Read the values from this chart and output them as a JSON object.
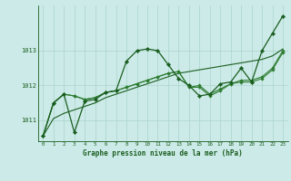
{
  "background_color": "#cceae7",
  "grid_color": "#aad4cc",
  "line_color_dark": "#1a5e20",
  "line_color_mid": "#2e7d32",
  "xlabel": "Graphe pression niveau de la mer (hPa)",
  "xlim": [
    -0.5,
    23.5
  ],
  "ylim": [
    1010.4,
    1014.3
  ],
  "yticks": [
    1011,
    1012,
    1013
  ],
  "xticks": [
    0,
    1,
    2,
    3,
    4,
    5,
    6,
    7,
    8,
    9,
    10,
    11,
    12,
    13,
    14,
    15,
    16,
    17,
    18,
    19,
    20,
    21,
    22,
    23
  ],
  "series1": [
    1010.55,
    1011.5,
    1011.75,
    1010.65,
    1011.55,
    1011.6,
    1011.8,
    1011.85,
    1012.7,
    1013.0,
    1013.05,
    1013.0,
    1012.6,
    1012.2,
    1012.0,
    1011.7,
    1011.75,
    1012.05,
    1012.1,
    1012.5,
    1012.1,
    1013.0,
    1013.5,
    1014.0
  ],
  "series2": [
    1010.55,
    1011.5,
    1011.75,
    1011.7,
    1011.6,
    1011.65,
    1011.8,
    1011.85,
    1011.95,
    1012.05,
    1012.15,
    1012.25,
    1012.35,
    1012.4,
    1011.95,
    1011.95,
    1011.7,
    1011.85,
    1012.05,
    1012.1,
    1012.1,
    1012.2,
    1012.45,
    1012.95
  ],
  "series3": [
    1010.55,
    1011.5,
    1011.75,
    1011.7,
    1011.6,
    1011.65,
    1011.8,
    1011.85,
    1011.95,
    1012.05,
    1012.15,
    1012.25,
    1012.35,
    1012.4,
    1011.95,
    1012.0,
    1011.75,
    1011.9,
    1012.05,
    1012.15,
    1012.15,
    1012.25,
    1012.5,
    1013.0
  ],
  "series_straight": [
    1010.55,
    1011.05,
    1011.2,
    1011.3,
    1011.4,
    1011.5,
    1011.65,
    1011.75,
    1011.85,
    1011.95,
    1012.05,
    1012.15,
    1012.25,
    1012.35,
    1012.4,
    1012.45,
    1012.5,
    1012.55,
    1012.6,
    1012.65,
    1012.7,
    1012.75,
    1012.85,
    1013.05
  ]
}
